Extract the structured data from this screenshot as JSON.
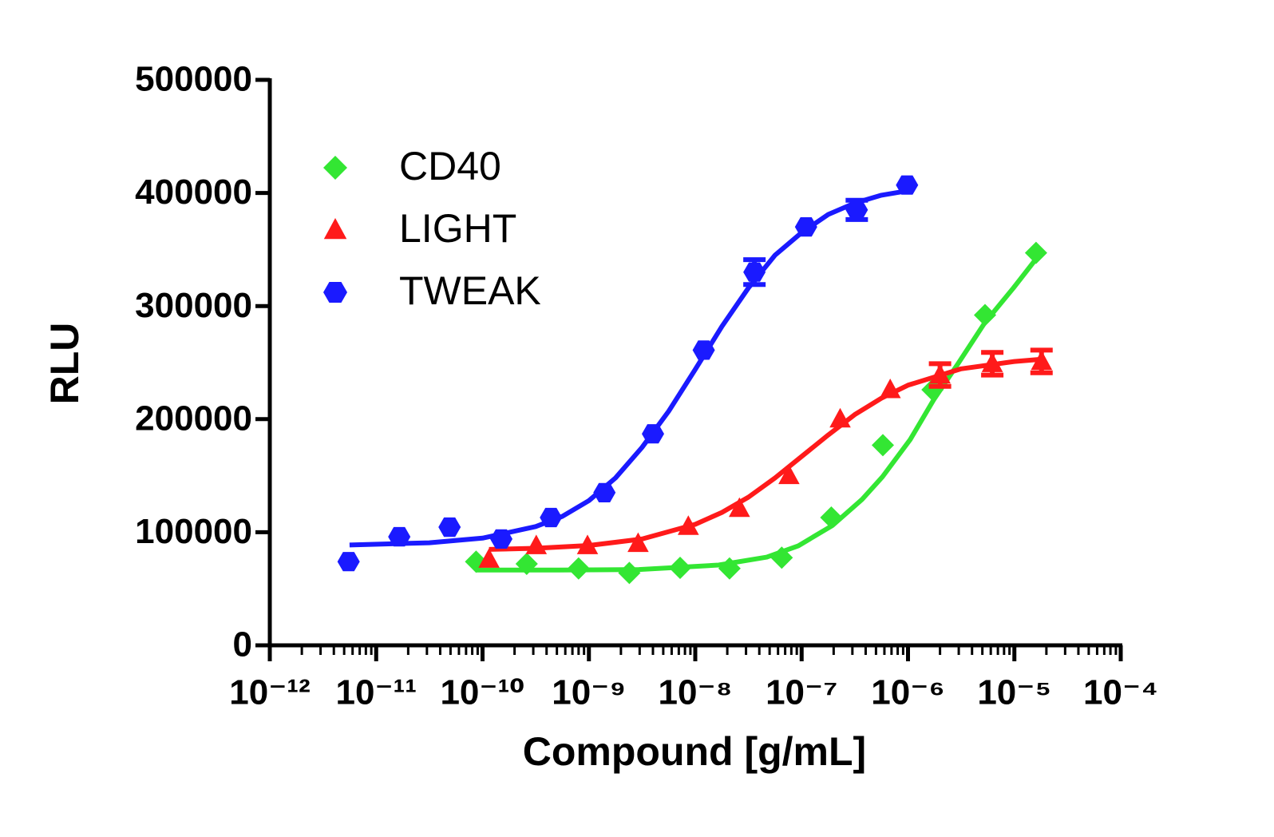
{
  "chart_data": {
    "type": "scatter",
    "xlabel": "Compound [g/mL]",
    "ylabel": "RLU",
    "xscale": "log",
    "xlim": [
      1e-12,
      0.0001
    ],
    "xticks": [
      {
        "value": 1e-12,
        "label": "10⁻¹²"
      },
      {
        "value": 1e-11,
        "label": "10⁻¹¹"
      },
      {
        "value": 1e-10,
        "label": "10⁻¹⁰"
      },
      {
        "value": 1e-09,
        "label": "10⁻⁹"
      },
      {
        "value": 1e-08,
        "label": "10⁻⁸"
      },
      {
        "value": 1e-07,
        "label": "10⁻⁷"
      },
      {
        "value": 1e-06,
        "label": "10⁻⁶"
      },
      {
        "value": 1e-05,
        "label": "10⁻⁵"
      },
      {
        "value": 0.0001,
        "label": "10⁻⁴"
      }
    ],
    "ylim": [
      0,
      500000
    ],
    "yticks": [
      0,
      100000,
      200000,
      300000,
      400000,
      500000
    ],
    "legend": "upper left",
    "series": [
      {
        "name": "CD40",
        "color": "#33e633",
        "marker": "diamond",
        "x": [
          8.7e-11,
          2.6e-10,
          8e-10,
          2.4e-09,
          7.2e-09,
          2.1e-08,
          6.5e-08,
          1.9e-07,
          5.8e-07,
          1.7e-06,
          5.3e-06,
          1.6e-05
        ],
        "values": [
          74000,
          72000,
          68000,
          64000,
          68500,
          68000,
          77500,
          113000,
          177000,
          226000,
          292000,
          347000
        ]
      },
      {
        "name": "LIGHT",
        "color": "#ff1a1a",
        "marker": "triangle",
        "x": [
          1.15e-10,
          3.2e-10,
          9.7e-10,
          2.9e-09,
          8.6e-09,
          2.6e-08,
          7.6e-08,
          2.3e-07,
          6.8e-07,
          2e-06,
          6.2e-06,
          1.8e-05
        ],
        "values": [
          76000,
          88000,
          88000,
          90000,
          105000,
          121000,
          150000,
          200000,
          226000,
          239000,
          249000,
          251000
        ],
        "errors": [
          null,
          null,
          null,
          null,
          null,
          null,
          null,
          null,
          null,
          10000,
          10000,
          10000
        ]
      },
      {
        "name": "TWEAK",
        "color": "#1a1aff",
        "marker": "hexagon",
        "x": [
          5.5e-12,
          1.65e-11,
          4.9e-11,
          1.5e-10,
          4.4e-10,
          1.4e-09,
          4e-09,
          1.2e-08,
          3.6e-08,
          1.1e-07,
          3.3e-07,
          9.8e-07
        ],
        "values": [
          74000,
          96000,
          104500,
          94000,
          113000,
          135000,
          187000,
          261000,
          330000,
          370000,
          385000,
          407000
        ],
        "errors": [
          null,
          null,
          null,
          null,
          null,
          null,
          null,
          null,
          11000,
          null,
          8500,
          null
        ]
      }
    ],
    "fits": [
      {
        "color": "#33e633",
        "x": [
          8.7e-11,
          5.2e-10,
          2.95e-09,
          1.66e-08,
          4.7e-08,
          9.3e-08,
          1.95e-07,
          3.7e-07,
          5.75e-07,
          1.05e-06,
          1.74e-06,
          2.95e-06,
          5.25e-06,
          9.8e-06,
          1.58e-05
        ],
        "values": [
          66500,
          66500,
          67000,
          71000,
          78000,
          88000,
          106000,
          129000,
          149000,
          182000,
          217000,
          249000,
          285000,
          316000,
          341000
        ]
      },
      {
        "color": "#ff1a1a",
        "x": [
          1.15e-10,
          3.16e-10,
          1e-09,
          3.16e-09,
          1e-08,
          1.78e-08,
          3.16e-08,
          5.62e-08,
          1e-07,
          1.78e-07,
          3.16e-07,
          5.62e-07,
          1e-06,
          3.16e-06,
          1e-05,
          1.82e-05
        ],
        "values": [
          84800,
          85800,
          88300,
          94000,
          107000,
          117500,
          131000,
          148000,
          167000,
          186000,
          204000,
          218500,
          230000,
          244500,
          251000,
          253000
        ]
      },
      {
        "color": "#1a1aff",
        "x": [
          5.62e-12,
          3.16e-11,
          1e-10,
          3.16e-10,
          5.62e-10,
          1e-09,
          1.78e-09,
          3.16e-09,
          5.62e-09,
          1e-08,
          1.78e-08,
          3.16e-08,
          5.62e-08,
          1e-07,
          1.78e-07,
          3.16e-07,
          5.62e-07,
          1e-06
        ],
        "values": [
          88700,
          90700,
          94800,
          105000,
          114000,
          128000,
          148000,
          175000,
          207000,
          244000,
          282000,
          316000,
          345000,
          365000,
          381000,
          391000,
          398000,
          402000
        ]
      }
    ]
  }
}
